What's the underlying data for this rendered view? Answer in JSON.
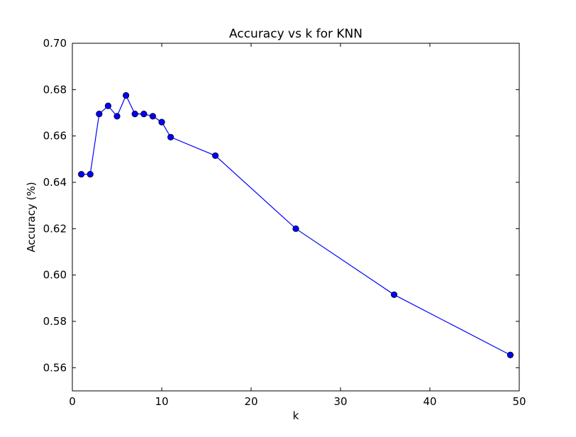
{
  "chart_data": {
    "type": "line",
    "title": "Accuracy vs k for KNN",
    "xlabel": "k",
    "ylabel": "Accuracy (%)",
    "xlim": [
      0,
      50
    ],
    "ylim": [
      0.55,
      0.7
    ],
    "xticks": [
      "0",
      "10",
      "20",
      "30",
      "40",
      "50"
    ],
    "yticks": [
      "0.56",
      "0.58",
      "0.60",
      "0.62",
      "0.64",
      "0.66",
      "0.68",
      "0.70"
    ],
    "grid": false,
    "line_color": "#0000ff",
    "series": [
      {
        "x": [
          1,
          2,
          3,
          4,
          5,
          6,
          7,
          8,
          9,
          10,
          11,
          16,
          25,
          36,
          49
        ],
        "y": [
          0.6435,
          0.6435,
          0.6695,
          0.673,
          0.6685,
          0.6775,
          0.6695,
          0.6695,
          0.6685,
          0.666,
          0.6595,
          0.6515,
          0.62,
          0.5915,
          0.5655
        ]
      }
    ]
  }
}
